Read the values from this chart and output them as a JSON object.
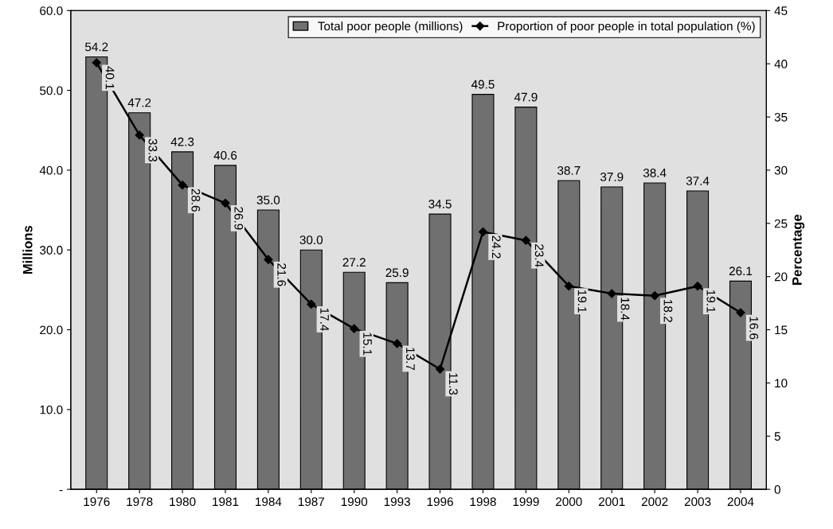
{
  "chart_data": {
    "type": "bar",
    "categories": [
      "1976",
      "1978",
      "1980",
      "1981",
      "1984",
      "1987",
      "1990",
      "1993",
      "1996",
      "1998",
      "1999",
      "2000",
      "2001",
      "2002",
      "2003",
      "2004"
    ],
    "series": [
      {
        "name": "Total poor people (millions)",
        "color": "#707070",
        "values": [
          54.2,
          47.2,
          42.3,
          40.6,
          35.0,
          30.0,
          27.2,
          25.9,
          34.5,
          49.5,
          47.9,
          38.7,
          37.9,
          38.4,
          37.4,
          26.1
        ],
        "value_labels": [
          "54.2",
          "47.2",
          "42.3",
          "40.6",
          "35.0",
          "30.0",
          "27.2",
          "25.9",
          "34.5",
          "49.5",
          "47.9",
          "38.7",
          "37.9",
          "38.4",
          "37.4",
          "26.1"
        ]
      },
      {
        "name": "Proportion of poor people in total population (%)",
        "type": "line",
        "axis": "y2",
        "color": "#000000",
        "marker": "diamond",
        "values": [
          40.1,
          33.3,
          28.6,
          26.9,
          21.6,
          17.4,
          15.1,
          13.7,
          11.3,
          24.2,
          23.4,
          19.1,
          18.4,
          18.2,
          19.1,
          16.6
        ]
      }
    ],
    "ylabel": "Millions",
    "y2label": "Percentage",
    "ylim": [
      0,
      60
    ],
    "yticks": [
      {
        "value": 0,
        "label": "-"
      },
      {
        "value": 10,
        "label": "10.0"
      },
      {
        "value": 20,
        "label": "20.0"
      },
      {
        "value": 30,
        "label": "30.0"
      },
      {
        "value": 40,
        "label": "40.0"
      },
      {
        "value": 50,
        "label": "50.0"
      },
      {
        "value": 60,
        "label": "60.0"
      }
    ],
    "y2lim": [
      0,
      45
    ],
    "y2ticks": [
      0,
      5,
      10,
      15,
      20,
      25,
      30,
      35,
      40,
      45
    ],
    "data_labels": true,
    "legend": "top right"
  }
}
